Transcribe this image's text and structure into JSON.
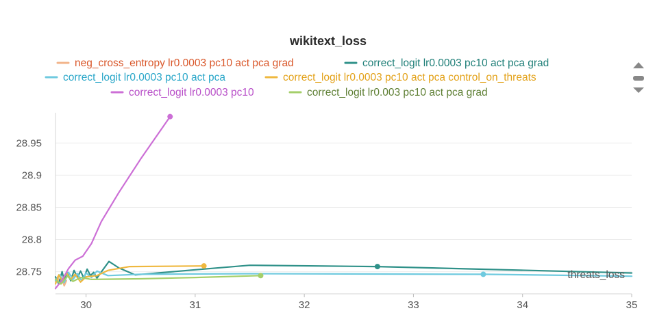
{
  "chart_data": {
    "type": "line",
    "title": "wikitext_loss",
    "xlabel": "threats_loss",
    "ylabel": "",
    "xlim": [
      29.72,
      35.0
    ],
    "ylim": [
      28.722,
      28.997
    ],
    "xticks": [
      30,
      31,
      32,
      33,
      34,
      35
    ],
    "yticks": [
      28.75,
      28.8,
      28.85,
      28.9,
      28.95
    ],
    "ytick_labels": [
      "28.75",
      "28.8",
      "28.85",
      "28.9",
      "28.95"
    ],
    "xtick_labels": [
      "30",
      "31",
      "32",
      "33",
      "34",
      "35"
    ],
    "grid": "horizontal",
    "legend_placement": "top",
    "series": [
      {
        "name": "neg_cross_entropy lr0.0003 pc10 act pca grad",
        "color": "#f2b48a",
        "label_color": "#d9572a",
        "points": [
          [
            29.72,
            28.734
          ],
          [
            29.74,
            28.742
          ],
          [
            29.76,
            28.731
          ],
          [
            29.78,
            28.739
          ],
          [
            29.8,
            28.728
          ],
          [
            29.82,
            28.736
          ]
        ]
      },
      {
        "name": "correct_logit lr0.0003 pc10 act pca grad",
        "color": "#2f9189",
        "label_color": "#1f7f78",
        "marker_at": 32.67,
        "points": [
          [
            29.72,
            28.742
          ],
          [
            29.75,
            28.731
          ],
          [
            29.78,
            28.75
          ],
          [
            29.8,
            28.737
          ],
          [
            29.83,
            28.748
          ],
          [
            29.86,
            28.736
          ],
          [
            29.89,
            28.752
          ],
          [
            29.92,
            28.741
          ],
          [
            29.95,
            28.751
          ],
          [
            29.98,
            28.74
          ],
          [
            30.01,
            28.754
          ],
          [
            30.04,
            28.744
          ],
          [
            30.07,
            28.749
          ],
          [
            30.1,
            28.74
          ],
          [
            30.15,
            28.752
          ],
          [
            30.21,
            28.766
          ],
          [
            30.3,
            28.756
          ],
          [
            30.45,
            28.745
          ],
          [
            31.0,
            28.753
          ],
          [
            31.5,
            28.76
          ],
          [
            32.67,
            28.758
          ],
          [
            35.0,
            28.748
          ]
        ]
      },
      {
        "name": "correct_logit lr0.0003 pc10 act pca",
        "color": "#6fcadf",
        "label_color": "#2aa7c9",
        "marker_at": 33.64,
        "points": [
          [
            29.72,
            28.736
          ],
          [
            29.76,
            28.745
          ],
          [
            29.8,
            28.733
          ],
          [
            29.84,
            28.749
          ],
          [
            29.88,
            28.738
          ],
          [
            29.92,
            28.747
          ],
          [
            29.96,
            28.736
          ],
          [
            30.0,
            28.748
          ],
          [
            30.05,
            28.741
          ],
          [
            30.1,
            28.751
          ],
          [
            30.2,
            28.744
          ],
          [
            30.5,
            28.746
          ],
          [
            31.5,
            28.747
          ],
          [
            33.64,
            28.746
          ],
          [
            35.0,
            28.743
          ]
        ]
      },
      {
        "name": "correct_logit lr0.0003 pc10 act pca control_on_threats",
        "color": "#efb83f",
        "label_color": "#e3a21a",
        "marker_at": 31.08,
        "points": [
          [
            29.72,
            28.731
          ],
          [
            29.75,
            28.745
          ],
          [
            29.78,
            28.736
          ],
          [
            29.82,
            28.748
          ],
          [
            29.86,
            28.738
          ],
          [
            29.9,
            28.746
          ],
          [
            29.95,
            28.734
          ],
          [
            30.0,
            28.742
          ],
          [
            30.1,
            28.744
          ],
          [
            30.2,
            28.752
          ],
          [
            30.4,
            28.758
          ],
          [
            31.08,
            28.759
          ]
        ]
      },
      {
        "name": "correct_logit lr0.0003 pc10",
        "color": "#cc6fd6",
        "label_color": "#b84fc8",
        "marker_at": 30.77,
        "points": [
          [
            29.72,
            28.724
          ],
          [
            29.78,
            28.737
          ],
          [
            29.84,
            28.755
          ],
          [
            29.9,
            28.768
          ],
          [
            29.97,
            28.774
          ],
          [
            30.05,
            28.794
          ],
          [
            30.14,
            28.828
          ],
          [
            30.3,
            28.873
          ],
          [
            30.5,
            28.925
          ],
          [
            30.77,
            28.991
          ]
        ]
      },
      {
        "name": "correct_logit lr0.003 pc10 act pca grad",
        "color": "#a4cf6a",
        "label_color": "#5e7f34",
        "marker_at": 31.6,
        "points": [
          [
            29.72,
            28.738
          ],
          [
            29.77,
            28.731
          ],
          [
            29.83,
            28.743
          ],
          [
            29.88,
            28.735
          ],
          [
            29.95,
            28.741
          ],
          [
            30.05,
            28.738
          ],
          [
            30.5,
            28.739
          ],
          [
            31.0,
            28.741
          ],
          [
            31.6,
            28.744
          ]
        ]
      }
    ]
  },
  "legend_controls": {
    "up_icon": "triangle-up-icon",
    "menu_icon": "drag-handle-icon",
    "down_icon": "triangle-down-icon"
  }
}
